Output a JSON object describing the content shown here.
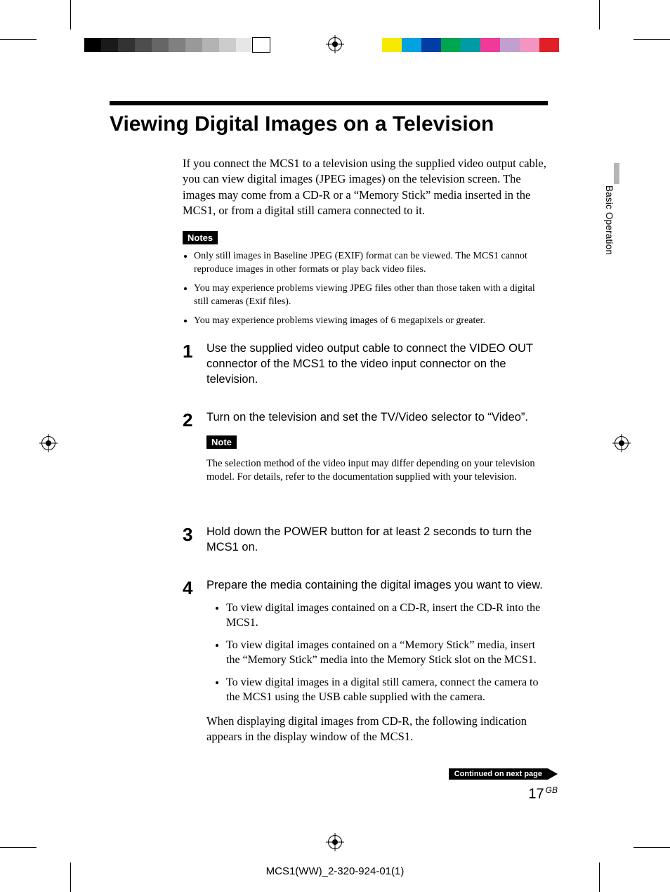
{
  "print_marks": {
    "gray_ramp_colors": [
      "#000000",
      "#1a1a1a",
      "#333333",
      "#4d4d4d",
      "#666666",
      "#808080",
      "#999999",
      "#b3b3b3",
      "#cccccc",
      "#e6e6e6",
      "#ffffff"
    ],
    "cmyk_bar_colors": [
      "#f7ea00",
      "#00a3e0",
      "#003da5",
      "#00a551",
      "#009ca6",
      "#ef3b97",
      "#c1a0cf",
      "#f495c1",
      "#e11f27"
    ]
  },
  "side_tab": "Basic Operation",
  "title": "Viewing Digital Images on a Television",
  "intro": "If you connect the MCS1 to a television using the supplied video output cable, you can view digital images (JPEG images) on the television screen. The images may come from a CD-R or a “Memory Stick” media inserted in the MCS1, or from a digital still camera connected to it.",
  "notes_label": "Notes",
  "notes": [
    "Only still images in Baseline JPEG (EXIF) format can be viewed. The MCS1 cannot reproduce images in other formats or play back video files.",
    "You may experience problems viewing JPEG files other than those taken with a digital still cameras (Exif files).",
    "You may experience problems viewing images of 6 megapixels or greater."
  ],
  "steps": {
    "s1": {
      "num": "1",
      "text": "Use the supplied video output cable to connect the VIDEO OUT connector of the MCS1 to the video input connector on the television."
    },
    "s2": {
      "num": "2",
      "text": "Turn on the television and set the TV/Video selector to “Video”.",
      "note_label": "Note",
      "note_text": "The selection method of the video input may differ depending on your television model. For details, refer to the documentation supplied with your television."
    },
    "s3": {
      "num": "3",
      "text": "Hold down the POWER button for at least 2 seconds to turn the MCS1 on."
    },
    "s4": {
      "num": "4",
      "text": "Prepare the media containing the digital images you want to view.",
      "bullets": [
        "To view digital images contained on a CD-R, insert the CD-R into the MCS1.",
        "To view digital images contained on a “Memory Stick” media, insert the “Memory Stick” media into the Memory Stick slot on the MCS1.",
        "To view digital images in a digital still camera, connect the camera to the MCS1 using the USB cable supplied with the camera."
      ],
      "closing": "When displaying digital images from CD-R, the following indication appears in the display window of the MCS1."
    }
  },
  "continued": "Continued on next page",
  "page_number": "17",
  "page_lang": "GB",
  "footer": "MCS1(WW)_2-320-924-01(1)"
}
